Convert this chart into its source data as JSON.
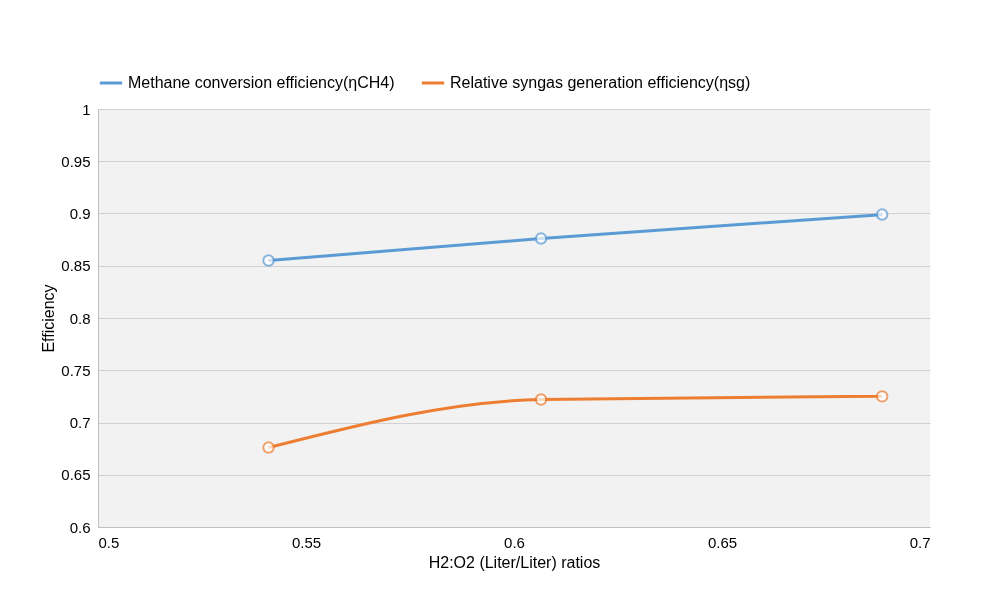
{
  "chart_data": {
    "type": "line",
    "xlabel": "H2:O2 (Liter/Liter) ratios",
    "ylabel": "Efficiency",
    "x": [
      0.541,
      0.6065,
      0.6885
    ],
    "series": [
      {
        "name": "Methane conversion efficiency(ηCH4)",
        "color": "#5b9bd5",
        "values": [
          0.855,
          0.876,
          0.899
        ]
      },
      {
        "name": "Relative syngas generation efficiency(ηsg)",
        "color": "#ed7d31",
        "values": [
          0.676,
          0.722,
          0.725
        ]
      }
    ],
    "xlim": [
      0.5,
      0.7
    ],
    "xticks": [
      0.5,
      0.55,
      0.6,
      0.65,
      0.7
    ],
    "ylim": [
      0.6,
      1
    ],
    "yticks": [
      0.6,
      0.65,
      0.7,
      0.75,
      0.8,
      0.85,
      0.9,
      0.95,
      1
    ],
    "grid": "y",
    "legend": "top",
    "marker": "circle",
    "line_style": "solid"
  }
}
